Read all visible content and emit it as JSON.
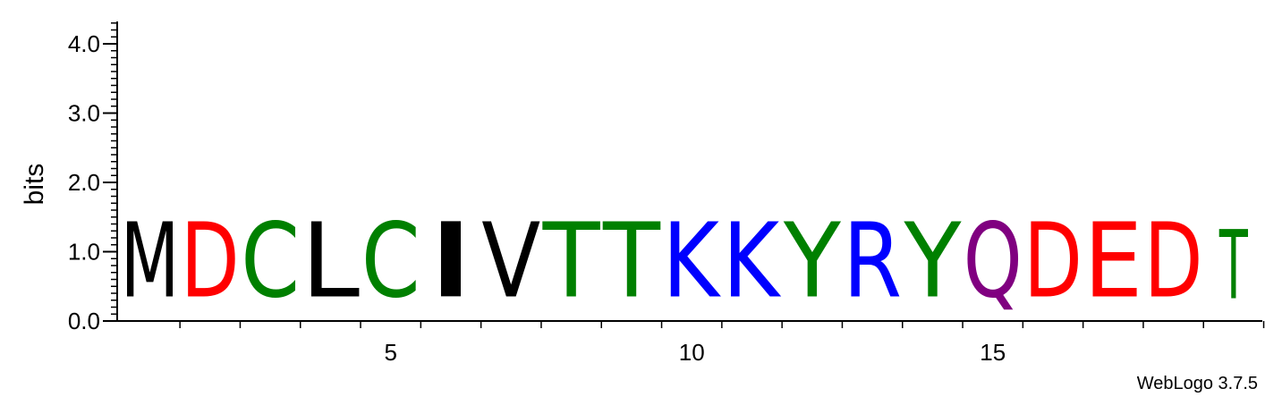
{
  "chart_data": {
    "type": "sequence-logo",
    "ylabel": "bits",
    "ylim": [
      0,
      4.3
    ],
    "yticks": [
      {
        "value": 0.0,
        "label": "0.0"
      },
      {
        "value": 1.0,
        "label": "1.0"
      },
      {
        "value": 2.0,
        "label": "2.0"
      },
      {
        "value": 3.0,
        "label": "3.0"
      },
      {
        "value": 4.0,
        "label": "4.0"
      }
    ],
    "xticks": [
      {
        "position": 5,
        "label": "5"
      },
      {
        "position": 10,
        "label": "10"
      },
      {
        "position": 15,
        "label": "15"
      }
    ],
    "positions": [
      {
        "position": 1,
        "residue": "M",
        "bits": 1.74,
        "color": "#000000"
      },
      {
        "position": 2,
        "residue": "D",
        "bits": 1.74,
        "color": "#ff0000"
      },
      {
        "position": 3,
        "residue": "C",
        "bits": 1.74,
        "color": "#008000"
      },
      {
        "position": 4,
        "residue": "L",
        "bits": 1.74,
        "color": "#000000"
      },
      {
        "position": 5,
        "residue": "C",
        "bits": 1.74,
        "color": "#008000"
      },
      {
        "position": 6,
        "residue": "I",
        "bits": 1.74,
        "color": "#000000"
      },
      {
        "position": 7,
        "residue": "V",
        "bits": 1.74,
        "color": "#000000"
      },
      {
        "position": 8,
        "residue": "T",
        "bits": 1.74,
        "color": "#008000"
      },
      {
        "position": 9,
        "residue": "T",
        "bits": 1.74,
        "color": "#008000"
      },
      {
        "position": 10,
        "residue": "K",
        "bits": 1.74,
        "color": "#0000ff"
      },
      {
        "position": 11,
        "residue": "K",
        "bits": 1.74,
        "color": "#0000ff"
      },
      {
        "position": 12,
        "residue": "Y",
        "bits": 1.74,
        "color": "#008000"
      },
      {
        "position": 13,
        "residue": "R",
        "bits": 1.74,
        "color": "#0000ff"
      },
      {
        "position": 14,
        "residue": "Y",
        "bits": 1.74,
        "color": "#008000"
      },
      {
        "position": 15,
        "residue": "Q",
        "bits": 1.74,
        "color": "#800080"
      },
      {
        "position": 16,
        "residue": "D",
        "bits": 1.74,
        "color": "#ff0000"
      },
      {
        "position": 17,
        "residue": "E",
        "bits": 1.74,
        "color": "#ff0000"
      },
      {
        "position": 18,
        "residue": "D",
        "bits": 1.74,
        "color": "#ff0000"
      },
      {
        "position": 19,
        "residue": "T",
        "bits": 1.6,
        "color": "#008000"
      }
    ]
  },
  "footer": {
    "credit": "WebLogo 3.7.5"
  }
}
